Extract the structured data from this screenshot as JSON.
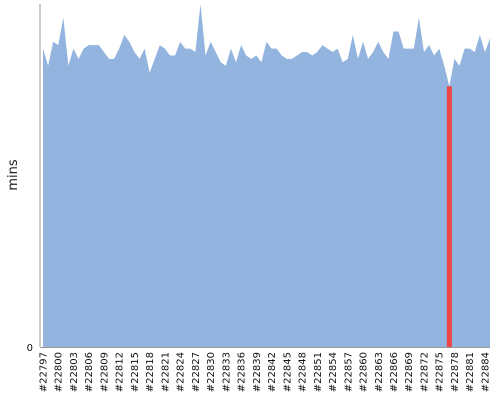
{
  "chart_data": {
    "type": "area",
    "title": "",
    "xlabel": "",
    "ylabel": "mins",
    "ylim": [
      0,
      100
    ],
    "y_tick_labels": [
      "0"
    ],
    "grid": false,
    "legend": "none",
    "colors": {
      "area": "#92b4de",
      "highlight": "#ee4444",
      "axis": "#999999"
    },
    "x_tick_labels": [
      "#22797",
      "#22800",
      "#22803",
      "#22806",
      "#22809",
      "#22812",
      "#22815",
      "#22818",
      "#22821",
      "#22824",
      "#22827",
      "#22830",
      "#22833",
      "#22836",
      "#22839",
      "#22842",
      "#22845",
      "#22848",
      "#22851",
      "#22854",
      "#22857",
      "#22860",
      "#22863",
      "#22866",
      "#22869",
      "#22872",
      "#22875",
      "#22878",
      "#22881",
      "#22884"
    ],
    "x_start": 22797,
    "x_end": 22885,
    "highlight": {
      "x": 22877,
      "value": 76
    },
    "y_top_clip": 100,
    "series": [
      {
        "x": [
          22797,
          22798,
          22799,
          22800,
          22801,
          22802,
          22803,
          22804,
          22805,
          22806,
          22807,
          22808,
          22809,
          22810,
          22811,
          22812,
          22813,
          22814,
          22815,
          22816,
          22817,
          22818,
          22819,
          22820,
          22821,
          22822,
          22823,
          22824,
          22825,
          22826,
          22827,
          22828,
          22829,
          22830,
          22831,
          22832,
          22833,
          22834,
          22835,
          22836,
          22837,
          22838,
          22839,
          22840,
          22841,
          22842,
          22843,
          22844,
          22845,
          22846,
          22847,
          22848,
          22849,
          22850,
          22851,
          22852,
          22853,
          22854,
          22855,
          22856,
          22857,
          22858,
          22859,
          22860,
          22861,
          22862,
          22863,
          22864,
          22865,
          22866,
          22867,
          22868,
          22869,
          22870,
          22871,
          22872,
          22873,
          22874,
          22875,
          22876,
          22877,
          22878,
          22879,
          22880,
          22881,
          22882,
          22883,
          22884,
          22885
        ],
        "values": [
          87,
          82,
          89,
          88,
          96,
          82,
          87,
          84,
          87,
          88,
          88,
          88,
          86,
          84,
          84,
          87,
          91,
          89,
          86,
          84,
          87,
          80,
          84,
          88,
          87,
          85,
          85,
          89,
          87,
          87,
          86,
          101,
          85,
          89,
          86,
          83,
          82,
          87,
          83,
          88,
          85,
          84,
          85,
          83,
          89,
          87,
          87,
          85,
          84,
          84,
          85,
          86,
          86,
          85,
          86,
          88,
          87,
          86,
          87,
          83,
          84,
          91,
          84,
          89,
          84,
          86,
          89,
          86,
          84,
          92,
          92,
          87,
          87,
          87,
          96,
          86,
          88,
          85,
          87,
          82,
          76,
          84,
          82,
          87,
          87,
          86,
          91,
          86,
          90
        ]
      }
    ]
  }
}
